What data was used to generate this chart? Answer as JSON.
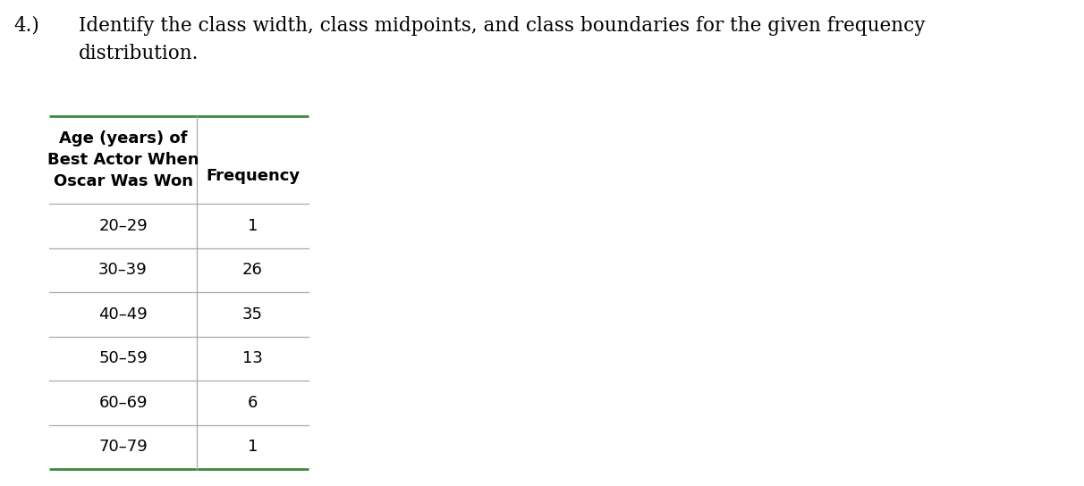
{
  "question_number": "4.)",
  "question_text": "Identify the class width, class midpoints, and class boundaries for the given frequency\ndistribution.",
  "col1_header": "Age (years) of\nBest Actor When\nOscar Was Won",
  "col2_header": "Frequency",
  "age_ranges": [
    "20–29",
    "30–39",
    "40–49",
    "50–59",
    "60–69",
    "70–79"
  ],
  "frequencies": [
    "1",
    "26",
    "35",
    "13",
    "6",
    "1"
  ],
  "table_line_color": "#3a8a3a",
  "divider_line_color": "#aaaaaa",
  "background_color": "#ffffff",
  "text_color": "#000000",
  "font_size_question": 15.5,
  "font_size_table": 13,
  "font_size_header": 13,
  "fig_width": 12.12,
  "fig_height": 5.44,
  "dpi": 100
}
